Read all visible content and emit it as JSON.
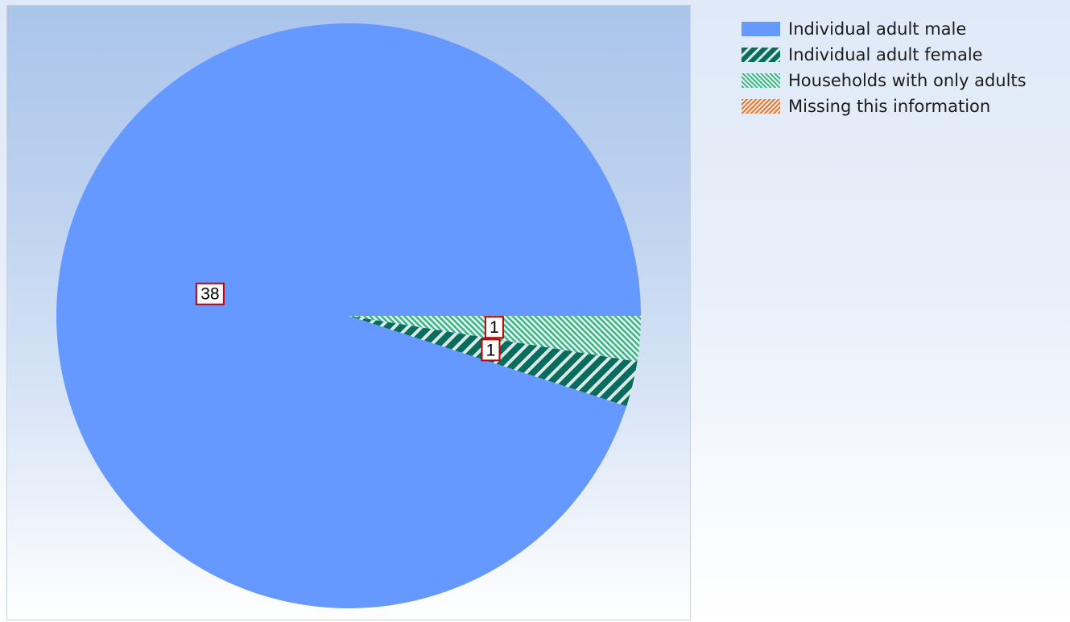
{
  "chart_data": {
    "type": "pie",
    "title": "",
    "start_angle_deg": 0,
    "direction": "counterclockwise",
    "slices": [
      {
        "label": "Individual adult male",
        "value": 38,
        "color": "#6699ff",
        "pattern": "solid",
        "label_box": "38"
      },
      {
        "label": "Individual adult female",
        "value": 1,
        "color": "#0b6b5e",
        "pattern": "wide-diagonal",
        "label_box": "1"
      },
      {
        "label": "Households with only adults",
        "value": 1,
        "color": "#3cb38a",
        "pattern": "back-diagonal",
        "label_box": "1"
      },
      {
        "label": "Missing this information",
        "value": 0,
        "color": "#e0773a",
        "pattern": "diagonal",
        "label_box": ""
      }
    ],
    "legend_position": "right"
  },
  "legend": {
    "items": [
      {
        "label": "Individual adult male"
      },
      {
        "label": "Individual adult female"
      },
      {
        "label": "Households with only adults"
      },
      {
        "label": "Missing this information"
      }
    ]
  }
}
